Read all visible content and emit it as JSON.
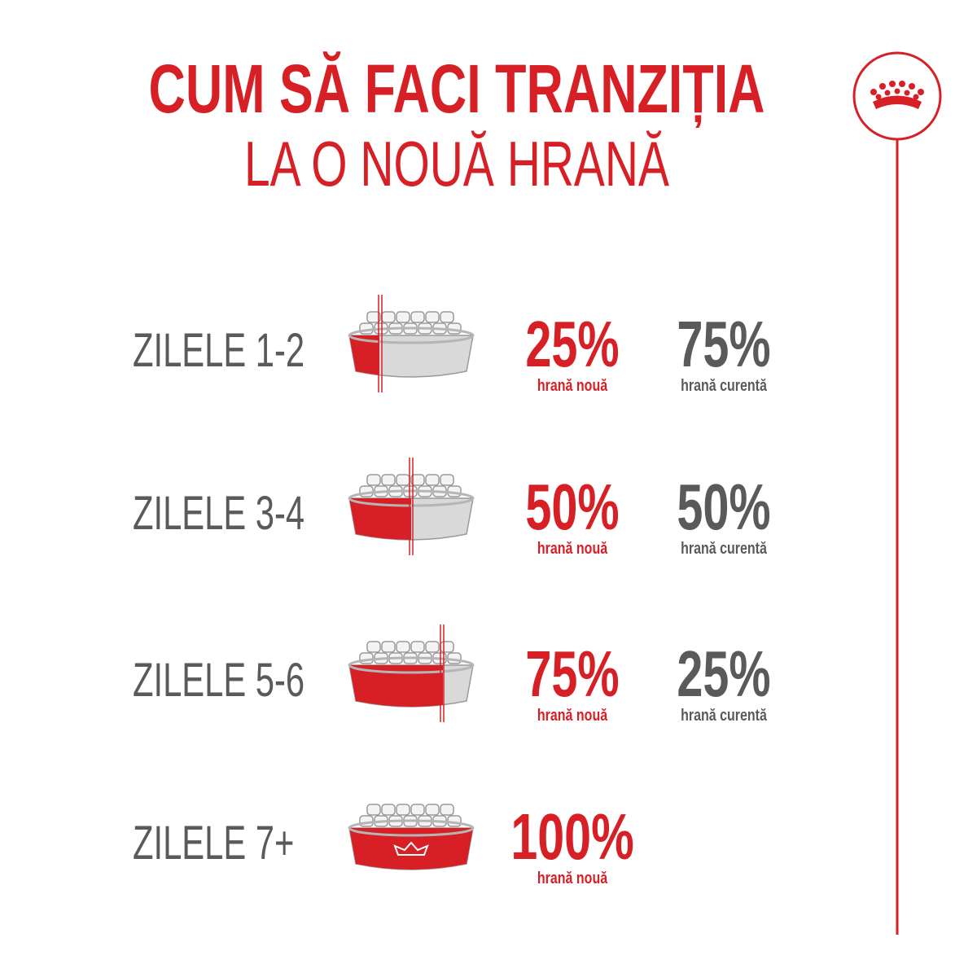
{
  "header": {
    "title": "CUM SĂ FACI TRANZIȚIA",
    "subtitle": "LA O NOUĂ HRANĂ"
  },
  "steps": [
    {
      "label": "ZILELE 1-2",
      "new_percent": "25%",
      "new_label": "hrană nouă",
      "current_percent": "75%",
      "current_label": "hrană curentă"
    },
    {
      "label": "ZILELE 3-4",
      "new_percent": "50%",
      "new_label": "hrană nouă",
      "current_percent": "50%",
      "current_label": "hrană curentă"
    },
    {
      "label": "ZILELE 5-6",
      "new_percent": "75%",
      "new_label": "hrană nouă",
      "current_percent": "25%",
      "current_label": "hrană curentă"
    },
    {
      "label": "ZILELE 7+",
      "new_percent": "100%",
      "new_label": "hrană nouă"
    }
  ]
}
